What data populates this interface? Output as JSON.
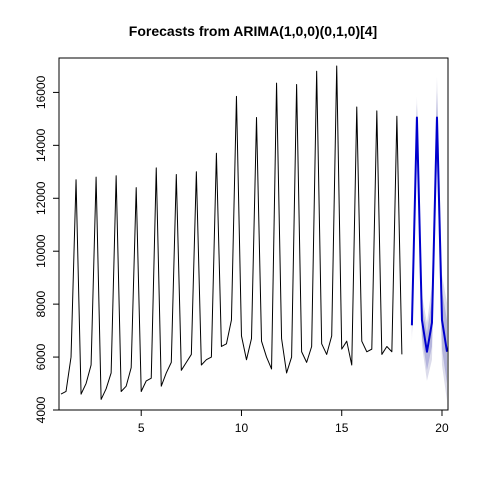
{
  "chart_data": {
    "type": "line",
    "title": "Forecasts from ARIMA(1,0,0)(0,1,0)[4]",
    "xlabel": "",
    "ylabel": "",
    "xlim": [
      0.9,
      20.3
    ],
    "ylim": [
      4000,
      17300
    ],
    "x_ticks": [
      5,
      10,
      15,
      20
    ],
    "x_tick_labels": [
      "5",
      "10",
      "15",
      "20"
    ],
    "y_ticks": [
      4000,
      6000,
      8000,
      10000,
      12000,
      14000,
      16000
    ],
    "y_tick_labels": [
      "4000",
      "6000",
      "8000",
      "10000",
      "12000",
      "14000",
      "16000"
    ],
    "grid": false,
    "legend": "none",
    "series": [
      {
        "role": "observed",
        "color": "#000000",
        "start": 1.0,
        "step": 0.25,
        "values": [
          4600,
          4700,
          6000,
          12700,
          4600,
          5000,
          5700,
          12800,
          4400,
          4800,
          5400,
          12850,
          4700,
          4900,
          5600,
          12400,
          4700,
          5100,
          5200,
          13150,
          4900,
          5400,
          5800,
          12900,
          5500,
          5800,
          6100,
          13000,
          5700,
          5900,
          6000,
          13700,
          6400,
          6500,
          7400,
          15850,
          6800,
          5900,
          6700,
          15050,
          6600,
          6000,
          5550,
          16350,
          6700,
          5400,
          6000,
          16300,
          6200,
          5800,
          6400,
          16800,
          6500,
          6100,
          6800,
          17000,
          6300,
          6600,
          5700,
          15450,
          6600,
          6200,
          6300,
          15300,
          6100,
          6400,
          6200,
          15100,
          6100
        ]
      },
      {
        "role": "forecast",
        "color": "#0000cd",
        "start": 18.5,
        "step": 0.25,
        "values": [
          7200,
          15050,
          7400,
          6200,
          7300,
          15050,
          7400,
          6200
        ],
        "band80_half_width": [
          420,
          520,
          620,
          700,
          900,
          1000,
          1100,
          1200
        ],
        "band95_half_width": [
          650,
          800,
          950,
          1100,
          1400,
          1550,
          1700,
          1850
        ],
        "band80_color": "#b4b4dc",
        "band95_color": "#dcdceb"
      }
    ]
  }
}
